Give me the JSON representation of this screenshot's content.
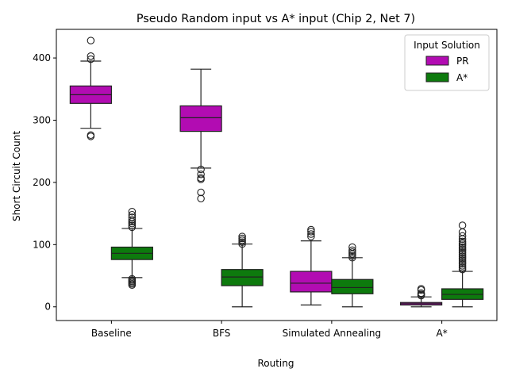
{
  "chart_data": {
    "type": "boxplot",
    "title": "Pseudo Random input vs A* input (Chip 2, Net 7)",
    "xlabel": "Routing",
    "ylabel": "Short Circuit Count",
    "ylim": [
      -22,
      446
    ],
    "yticks": [
      0,
      100,
      200,
      300,
      400
    ],
    "categories": [
      "Baseline",
      "BFS",
      "Simulated Annealing",
      "A*"
    ],
    "legend": {
      "title": "Input Solution",
      "placement": "top-right"
    },
    "series": [
      {
        "name": "PR",
        "color": "#b20cb2",
        "boxes": [
          {
            "category": "Baseline",
            "whisker_low": 287,
            "q1": 327,
            "median": 341,
            "q3": 355,
            "whisker_high": 395,
            "outliers": [
              274,
              276,
              398,
              403,
              428
            ]
          },
          {
            "category": "BFS",
            "whisker_low": 223,
            "q1": 282,
            "median": 304,
            "q3": 323,
            "whisker_high": 382,
            "outliers": [
              174,
              184,
              205,
              207,
              213,
              221
            ]
          },
          {
            "category": "Simulated Annealing",
            "whisker_low": 3,
            "q1": 24,
            "median": 38,
            "q3": 57,
            "whisker_high": 106,
            "outliers": [
              113,
              117,
              121,
              124
            ]
          },
          {
            "category": "A*",
            "whisker_low": 0,
            "q1": 3,
            "median": 5,
            "q3": 7,
            "whisker_high": 16,
            "outliers": [
              18,
              20,
              22,
              27,
              29
            ]
          }
        ]
      },
      {
        "name": "A*",
        "color": "#0d7a0d",
        "boxes": [
          {
            "category": "Baseline",
            "whisker_low": 47,
            "q1": 76,
            "median": 86,
            "q3": 96,
            "whisker_high": 126,
            "outliers": [
              35,
              37,
              39,
              41,
              43,
              45,
              128,
              131,
              134,
              137,
              140,
              144,
              148,
              153
            ]
          },
          {
            "category": "BFS",
            "whisker_low": 0,
            "q1": 34,
            "median": 48,
            "q3": 60,
            "whisker_high": 101,
            "outliers": [
              101,
              104,
              107,
              110,
              113
            ]
          },
          {
            "category": "Simulated Annealing",
            "whisker_low": 0,
            "q1": 21,
            "median": 31,
            "q3": 44,
            "whisker_high": 79,
            "outliers": [
              79,
              82,
              85,
              88,
              91,
              96
            ]
          },
          {
            "category": "A*",
            "whisker_low": 0,
            "q1": 12,
            "median": 20,
            "q3": 29,
            "whisker_high": 57,
            "outliers": [
              60,
              63,
              66,
              69,
              72,
              75,
              78,
              81,
              84,
              87,
              90,
              93,
              96,
              99,
              102,
              105,
              109,
              114,
              120,
              131
            ]
          }
        ]
      }
    ]
  }
}
